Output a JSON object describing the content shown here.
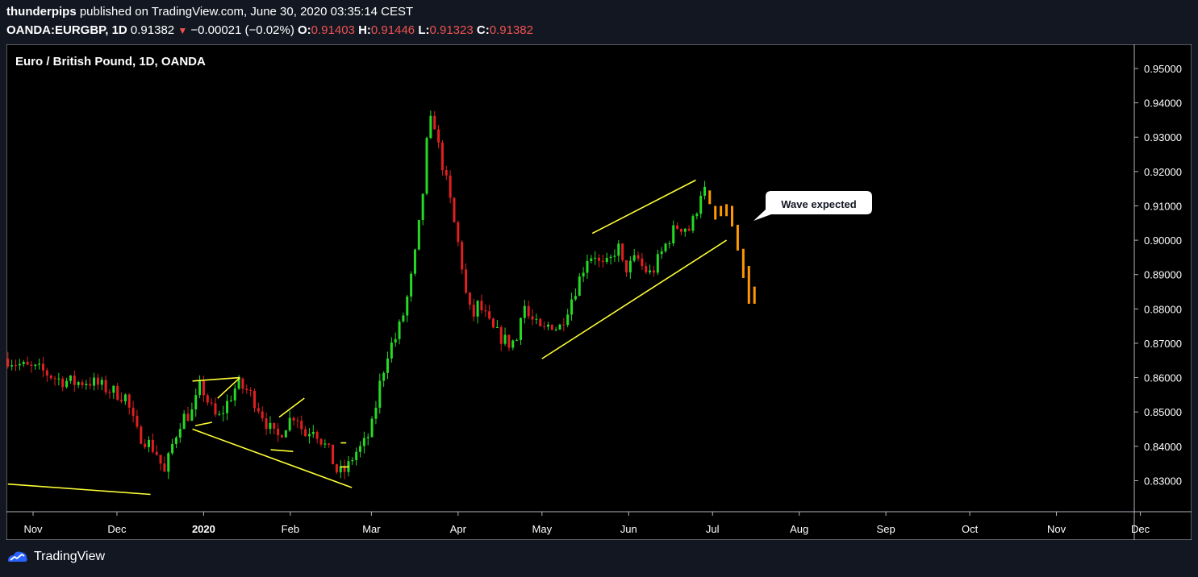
{
  "header": {
    "author": "thunderpips",
    "published_text": "published on TradingView.com, June 30, 2020 03:35:14 CEST",
    "symbol": "OANDA:EURGBP, 1D",
    "last": "0.91382",
    "change": "−0.00021 (−0.02%)",
    "o_label": "O:",
    "o_value": "0.91403",
    "h_label": "H:",
    "h_value": "0.91446",
    "l_label": "L:",
    "l_value": "0.91323",
    "c_label": "C:",
    "c_value": "0.91382"
  },
  "footer": {
    "brand": "TradingView"
  },
  "colors": {
    "background": "#000000",
    "page": "#131722",
    "up": "#26d926",
    "down": "#e02020",
    "projection": "#ff9800",
    "drawing": "#ffff33",
    "axis_text": "#ffffff"
  },
  "chart_data": {
    "type": "candlestick",
    "title": "Euro / British Pound, 1D, OANDA",
    "ylim": [
      0.821,
      0.957
    ],
    "y_ticks": [
      "0.95000",
      "0.94000",
      "0.93000",
      "0.92000",
      "0.91000",
      "0.90000",
      "0.89000",
      "0.88000",
      "0.87000",
      "0.86000",
      "0.85000",
      "0.84000",
      "0.83000"
    ],
    "x_ticks": [
      {
        "label": "Nov",
        "t": 0
      },
      {
        "label": "Dec",
        "t": 30
      },
      {
        "label": "2020",
        "t": 61
      },
      {
        "label": "Feb",
        "t": 92
      },
      {
        "label": "Mar",
        "t": 121
      },
      {
        "label": "Apr",
        "t": 152
      },
      {
        "label": "May",
        "t": 182
      },
      {
        "label": "Jun",
        "t": 213
      },
      {
        "label": "Jul",
        "t": 243
      },
      {
        "label": "Aug",
        "t": 274
      },
      {
        "label": "Sep",
        "t": 305
      },
      {
        "label": "Oct",
        "t": 335
      },
      {
        "label": "Nov",
        "t": 366
      },
      {
        "label": "Dec",
        "t": 396
      }
    ],
    "anchors": [
      [
        -9,
        0.8655
      ],
      [
        -3,
        0.863
      ],
      [
        3,
        0.862
      ],
      [
        9,
        0.8595
      ],
      [
        15,
        0.8585
      ],
      [
        20,
        0.859
      ],
      [
        27,
        0.8565
      ],
      [
        33,
        0.8545
      ],
      [
        37,
        0.844
      ],
      [
        40,
        0.842
      ],
      [
        44,
        0.8385
      ],
      [
        47,
        0.832
      ],
      [
        50,
        0.841
      ],
      [
        53,
        0.848
      ],
      [
        57,
        0.85
      ],
      [
        60,
        0.858
      ],
      [
        63,
        0.852
      ],
      [
        66,
        0.8475
      ],
      [
        69,
        0.852
      ],
      [
        73,
        0.858
      ],
      [
        77,
        0.856
      ],
      [
        81,
        0.851
      ],
      [
        84,
        0.846
      ],
      [
        87,
        0.842
      ],
      [
        90,
        0.846
      ],
      [
        94,
        0.85
      ],
      [
        97,
        0.843
      ],
      [
        100,
        0.846
      ],
      [
        103,
        0.842
      ],
      [
        106,
        0.838
      ],
      [
        109,
        0.832
      ],
      [
        112,
        0.833
      ],
      [
        115,
        0.838
      ],
      [
        118,
        0.84
      ],
      [
        121,
        0.845
      ],
      [
        124,
        0.858
      ],
      [
        127,
        0.868
      ],
      [
        130,
        0.872
      ],
      [
        133,
        0.88
      ],
      [
        136,
        0.892
      ],
      [
        139,
        0.91
      ],
      [
        141,
        0.93
      ],
      [
        143,
        0.937
      ],
      [
        145,
        0.927
      ],
      [
        147,
        0.92
      ],
      [
        149,
        0.912
      ],
      [
        151,
        0.903
      ],
      [
        153,
        0.895
      ],
      [
        155,
        0.883
      ],
      [
        157,
        0.877
      ],
      [
        159,
        0.881
      ],
      [
        161,
        0.879
      ],
      [
        164,
        0.874
      ],
      [
        167,
        0.872
      ],
      [
        170,
        0.87
      ],
      [
        173,
        0.871
      ],
      [
        175,
        0.883
      ],
      [
        177,
        0.878
      ],
      [
        180,
        0.875
      ],
      [
        182,
        0.873
      ],
      [
        185,
        0.876
      ],
      [
        188,
        0.874
      ],
      [
        191,
        0.88
      ],
      [
        194,
        0.886
      ],
      [
        196,
        0.89
      ],
      [
        198,
        0.895
      ],
      [
        201,
        0.896
      ],
      [
        203,
        0.892
      ],
      [
        206,
        0.893
      ],
      [
        209,
        0.899
      ],
      [
        211,
        0.892
      ],
      [
        213,
        0.892
      ],
      [
        216,
        0.895
      ],
      [
        218,
        0.892
      ],
      [
        221,
        0.89
      ],
      [
        224,
        0.895
      ],
      [
        227,
        0.9
      ],
      [
        230,
        0.904
      ],
      [
        233,
        0.904
      ],
      [
        235,
        0.903
      ],
      [
        237,
        0.908
      ],
      [
        239,
        0.915
      ],
      [
        241,
        0.914
      ]
    ],
    "projection": [
      {
        "t": 242,
        "open": 0.9145,
        "close": 0.9105
      },
      {
        "t": 244,
        "open": 0.91,
        "close": 0.906
      },
      {
        "t": 246,
        "open": 0.91,
        "close": 0.907
      },
      {
        "t": 248,
        "open": 0.9105,
        "close": 0.907
      },
      {
        "t": 250,
        "open": 0.91,
        "close": 0.904
      },
      {
        "t": 252,
        "open": 0.9045,
        "close": 0.897
      },
      {
        "t": 254,
        "open": 0.8975,
        "close": 0.889
      },
      {
        "t": 256,
        "open": 0.8925,
        "close": 0.8815
      },
      {
        "t": 258,
        "open": 0.8865,
        "close": 0.8815
      }
    ],
    "annotation": {
      "text": "Wave expected"
    },
    "drawings": [
      [
        [
          -9,
          0.829
        ],
        [
          42,
          0.826
        ]
      ],
      [
        [
          57,
          0.859
        ],
        [
          74,
          0.86
        ]
      ],
      [
        [
          57,
          0.845
        ],
        [
          114,
          0.828
        ]
      ],
      [
        [
          58,
          0.846
        ],
        [
          64,
          0.847
        ]
      ],
      [
        [
          66,
          0.854
        ],
        [
          74,
          0.86
        ]
      ],
      [
        [
          85,
          0.839
        ],
        [
          93,
          0.8385
        ]
      ],
      [
        [
          88,
          0.8485
        ],
        [
          97,
          0.854
        ]
      ],
      [
        [
          110,
          0.841
        ],
        [
          112,
          0.841
        ]
      ],
      [
        [
          110,
          0.834
        ],
        [
          113,
          0.834
        ]
      ],
      [
        [
          182,
          0.8655
        ],
        [
          248,
          0.9
        ]
      ],
      [
        [
          200,
          0.902
        ],
        [
          237,
          0.9175
        ]
      ]
    ]
  }
}
